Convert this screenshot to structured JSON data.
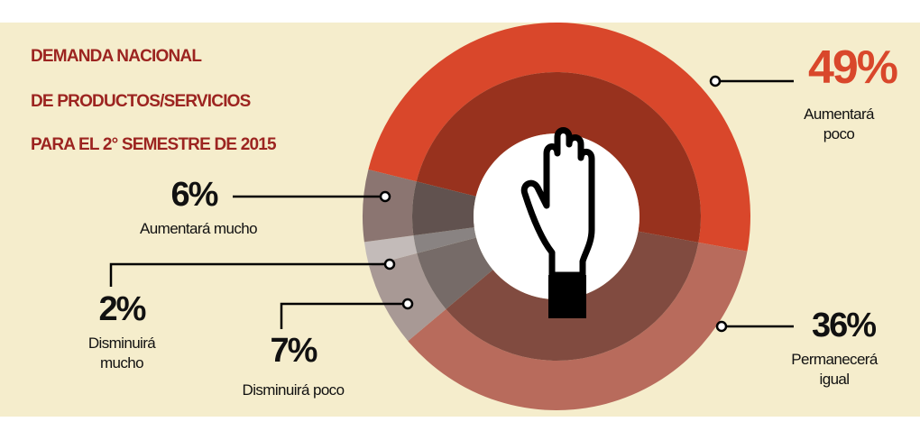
{
  "chart_data": {
    "type": "donut",
    "title": [
      "DEMANDA NACIONAL",
      "DE PRODUCTOS/SERVICIOS",
      "PARA EL 2° SEMESTRE DE 2015"
    ],
    "categories": [
      "Aumentará poco",
      "Permanecerá igual",
      "Disminuirá poco",
      "Disminuirá mucho",
      "Aumentará mucho"
    ],
    "values": [
      49,
      36,
      7,
      2,
      6
    ],
    "value_labels": [
      "49%",
      "36%",
      "7%",
      "2%",
      "6%"
    ],
    "colors": [
      "#d9472b",
      "#b86b5c",
      "#a89995",
      "#c3bbb9",
      "#8b7571"
    ]
  }
}
